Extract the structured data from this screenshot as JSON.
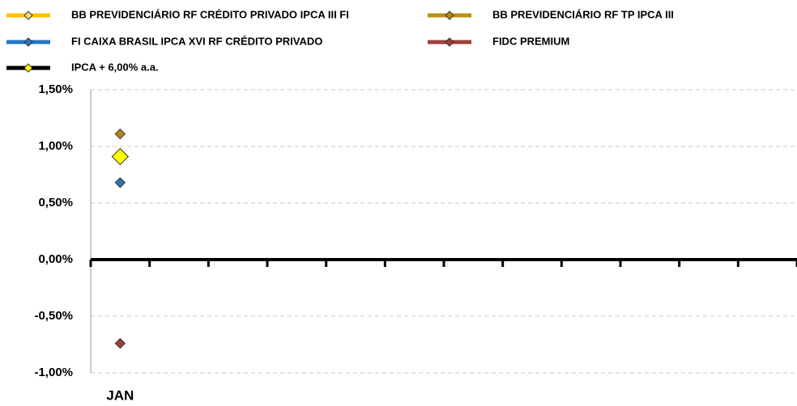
{
  "chart_data": {
    "type": "line",
    "categories": [
      "JAN",
      null,
      null,
      null,
      null,
      null,
      null,
      null,
      null,
      null,
      null,
      null
    ],
    "series": [
      {
        "name": "BB PREVIDENCIÁRIO RF CRÉDITO PRIVADO IPCA III FI",
        "color": "#FFC000",
        "marker_color": "#FFE066",
        "values": [
          0.91,
          null,
          null,
          null,
          null,
          null,
          null,
          null,
          null,
          null,
          null,
          null
        ]
      },
      {
        "name": "BB PREVIDENCIÁRIO RF TP IPCA III",
        "color": "#B8900E",
        "marker_color": "#B8860B",
        "values": [
          1.11,
          null,
          null,
          null,
          null,
          null,
          null,
          null,
          null,
          null,
          null,
          null
        ]
      },
      {
        "name": "FI CAIXA BRASIL IPCA XVI RF CRÉDITO PRIVADO",
        "color": "#1F78C8",
        "marker_color": "#2E75B6",
        "values": [
          0.68,
          null,
          null,
          null,
          null,
          null,
          null,
          null,
          null,
          null,
          null,
          null
        ]
      },
      {
        "name": "FIDC PREMIUM",
        "color": "#A0403E",
        "marker_color": "#A0403E",
        "values": [
          -0.74,
          null,
          null,
          null,
          null,
          null,
          null,
          null,
          null,
          null,
          null,
          null
        ]
      },
      {
        "name": "IPCA + 6,00% a.a.",
        "color": "#000000",
        "marker_color": "#FFFF00",
        "values": [
          0.91,
          null,
          null,
          null,
          null,
          null,
          null,
          null,
          null,
          null,
          null,
          null
        ]
      }
    ],
    "ylim": [
      -1.0,
      1.5
    ],
    "yticks": [
      {
        "value": -1.0,
        "label": "-1,00%"
      },
      {
        "value": -0.5,
        "label": "-0,50%"
      },
      {
        "value": 0,
        "label": "0,00%"
      },
      {
        "value": 0.5,
        "label": "0,50%"
      },
      {
        "value": 1.0,
        "label": "1,00%"
      },
      {
        "value": 1.5,
        "label": "1,50%"
      }
    ],
    "grid": true,
    "legend": "top"
  }
}
